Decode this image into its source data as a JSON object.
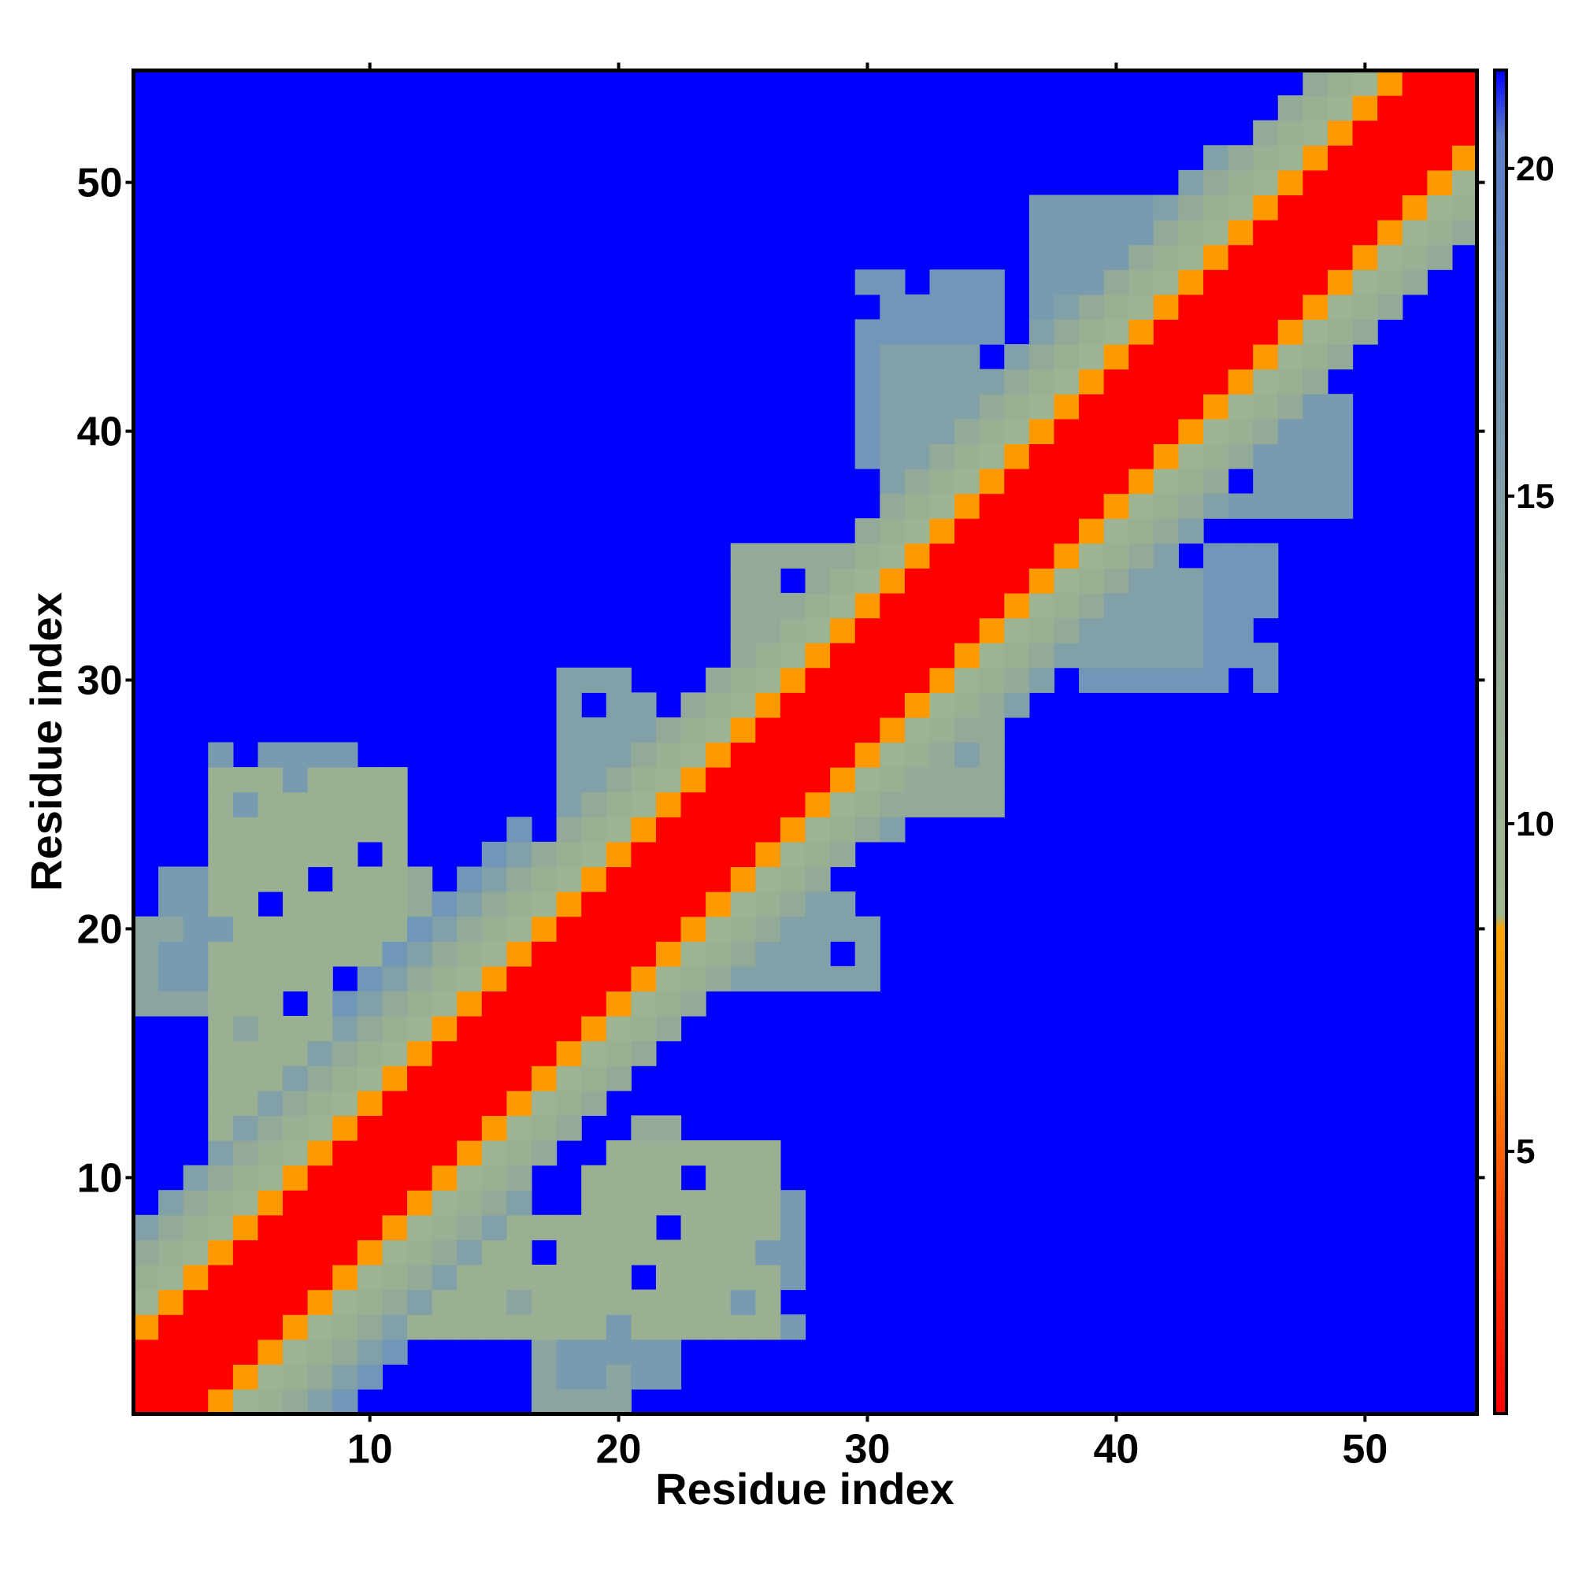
{
  "chart_data": {
    "type": "heatmap",
    "title": "",
    "xlabel": "Residue index",
    "ylabel": "Residue index",
    "n_residues": 54,
    "xlim": [
      0.5,
      54.5
    ],
    "ylim": [
      0.5,
      54.5
    ],
    "x_ticks": [
      10,
      20,
      30,
      40,
      50
    ],
    "y_ticks": [
      10,
      20,
      30,
      40,
      50
    ],
    "x_tick_labels": [
      "10",
      "20",
      "30",
      "40",
      "50"
    ],
    "y_tick_labels": [
      "10",
      "20",
      "30",
      "40",
      "50"
    ],
    "colorbar": {
      "range": [
        1,
        21.5
      ],
      "ticks": [
        5,
        10,
        15,
        20
      ],
      "tick_labels": [
        "5",
        "10",
        "15",
        "20"
      ],
      "background_color": "#0000ff",
      "stops": [
        {
          "value": 1,
          "color": "#ff0000"
        },
        {
          "value": 4,
          "color": "#ff4500"
        },
        {
          "value": 6.5,
          "color": "#ff8c00"
        },
        {
          "value": 8.4,
          "color": "#ffa500"
        },
        {
          "value": 8.6,
          "color": "#9fb88e"
        },
        {
          "value": 13,
          "color": "#94aa98"
        },
        {
          "value": 17,
          "color": "#7096b8"
        },
        {
          "value": 20.5,
          "color": "#5a7cc8"
        },
        {
          "value": 21.5,
          "color": "#0000ff"
        }
      ]
    },
    "band_profile": [
      {
        "offset": 0,
        "value": 1
      },
      {
        "offset": 1,
        "value": 1
      },
      {
        "offset": 2,
        "value": 1
      },
      {
        "offset": 3,
        "value": 7.5
      },
      {
        "offset": 4,
        "value": 10
      },
      {
        "offset": 5,
        "value": 11
      },
      {
        "offset": 6,
        "value": 13
      },
      {
        "offset": 7,
        "value": 15
      },
      {
        "offset": 8,
        "value": 17
      }
    ],
    "band_extent": [
      {
        "i_range": [
          1,
          8
        ],
        "max_offset": 7
      },
      {
        "i_range": [
          9,
          16
        ],
        "max_offset": 8
      },
      {
        "i_range": [
          17,
          30
        ],
        "max_offset": 6
      },
      {
        "i_range": [
          31,
          44
        ],
        "max_offset": 7
      },
      {
        "i_range": [
          45,
          54
        ],
        "max_offset": 6
      }
    ],
    "contact_regions": [
      {
        "x_range": [
          4,
          11
        ],
        "y_range": [
          10,
          26
        ],
        "value": 11
      },
      {
        "x_range": [
          2,
          4
        ],
        "y_range": [
          18,
          22
        ],
        "value": 16
      },
      {
        "x_range": [
          12,
          18
        ],
        "y_range": [
          16,
          22
        ],
        "value": 13
      },
      {
        "x_range": [
          12,
          16
        ],
        "y_range": [
          4,
          7
        ],
        "value": 14
      },
      {
        "x_range": [
          17,
          20
        ],
        "y_range": [
          1,
          4
        ],
        "value": 14
      },
      {
        "x_range": [
          23,
          27
        ],
        "y_range": [
          4,
          9
        ],
        "value": 16
      },
      {
        "x_range": [
          18,
          21
        ],
        "y_range": [
          23,
          30
        ],
        "value": 15
      },
      {
        "x_range": [
          25,
          30
        ],
        "y_range": [
          30,
          35
        ],
        "value": 13
      },
      {
        "x_range": [
          31,
          35
        ],
        "y_range": [
          25,
          32
        ],
        "value": 13
      },
      {
        "x_range": [
          37,
          43
        ],
        "y_range": [
          31,
          35
        ],
        "value": 15
      },
      {
        "x_range": [
          38,
          44
        ],
        "y_range": [
          40,
          44
        ],
        "value": 12
      },
      {
        "x_range": [
          44,
          48
        ],
        "y_range": [
          37,
          42
        ],
        "value": 16
      },
      {
        "x_range": [
          30,
          35
        ],
        "y_range": [
          39,
          46
        ],
        "value": 17
      },
      {
        "x_range": [
          37,
          41
        ],
        "y_range": [
          45,
          49
        ],
        "value": 16
      }
    ]
  }
}
